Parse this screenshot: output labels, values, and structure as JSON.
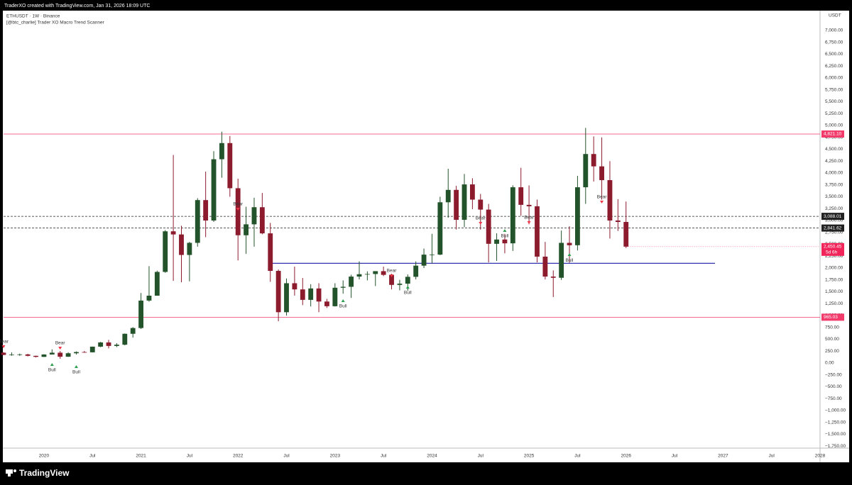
{
  "chart_data": {
    "type": "candlestick",
    "credit": "TraderXO created with TradingView.com, Jan 31, 2026 18:09 UTC",
    "title": "ETHUSDT · 1W · Binance",
    "subtitle": "[@btc_charlie] Trader XO Macro Trend Scanner",
    "currency": "USDT",
    "brand": "TradingView",
    "up_color": "#23532a",
    "down_color": "#8c1b2e",
    "grid": false,
    "x": [
      "2019-08",
      "2019-09",
      "2019-10",
      "2019-11",
      "2019-12",
      "2020-01",
      "2020-02",
      "2020-03",
      "2020-04",
      "2020-05",
      "2020-06",
      "2020-07",
      "2020-08",
      "2020-09",
      "2020-10",
      "2020-11",
      "2020-12",
      "2021-01",
      "2021-02",
      "2021-03",
      "2021-04",
      "2021-05",
      "2021-06",
      "2021-07",
      "2021-08",
      "2021-09",
      "2021-10",
      "2021-11",
      "2021-12",
      "2022-01",
      "2022-02",
      "2022-03",
      "2022-04",
      "2022-05",
      "2022-06",
      "2022-07",
      "2022-08",
      "2022-09",
      "2022-10",
      "2022-11",
      "2022-12",
      "2023-01",
      "2023-02",
      "2023-03",
      "2023-04",
      "2023-05",
      "2023-06",
      "2023-07",
      "2023-08",
      "2023-09",
      "2023-10",
      "2023-11",
      "2023-12",
      "2024-01",
      "2024-02",
      "2024-03",
      "2024-04",
      "2024-05",
      "2024-06",
      "2024-07",
      "2024-08",
      "2024-09",
      "2024-10",
      "2024-11",
      "2024-12",
      "2025-01",
      "2025-02",
      "2025-03",
      "2025-04",
      "2025-05",
      "2025-06",
      "2025-07",
      "2025-08",
      "2025-09",
      "2025-10",
      "2025-11",
      "2025-12",
      "2026-01"
    ],
    "open": [
      218,
      172,
      180,
      182,
      152,
      130,
      180,
      218,
      133,
      206,
      231,
      226,
      345,
      434,
      360,
      386,
      616,
      737,
      1315,
      1418,
      1918,
      2773,
      2707,
      2275,
      2530,
      3430,
      3000,
      4290,
      4630,
      3680,
      2690,
      2920,
      3280,
      2730,
      1940,
      1070,
      1680,
      1550,
      1330,
      1570,
      1295,
      1196,
      1585,
      1605,
      1820,
      1870,
      1874,
      1934,
      1856,
      1645,
      1671,
      1815,
      2050,
      2282,
      2283,
      3384,
      3645,
      3015,
      3760,
      3440,
      3230,
      2510,
      2600,
      2520,
      3700,
      3330,
      3300,
      2240,
      1820,
      1795,
      2530,
      2480,
      3700,
      4400,
      4140,
      3850,
      3000,
      2970
    ],
    "high": [
      230,
      225,
      198,
      195,
      155,
      185,
      288,
      253,
      227,
      245,
      255,
      345,
      445,
      488,
      420,
      622,
      755,
      1475,
      2040,
      1945,
      2800,
      4380,
      2890,
      2550,
      3470,
      4030,
      4460,
      4870,
      4780,
      3880,
      3290,
      3480,
      3580,
      2950,
      1970,
      1780,
      2030,
      1790,
      1660,
      1680,
      1350,
      1680,
      1740,
      1860,
      2140,
      1930,
      1930,
      2030,
      1880,
      1750,
      1865,
      2140,
      2410,
      2720,
      3500,
      4090,
      3730,
      3980,
      3890,
      3560,
      3350,
      2730,
      2720,
      3740,
      4110,
      3740,
      3440,
      2550,
      1950,
      2790,
      2880,
      3940,
      4950,
      4770,
      4750,
      4250,
      3450,
      3400
    ],
    "low": [
      165,
      153,
      152,
      140,
      117,
      127,
      180,
      90,
      130,
      178,
      216,
      225,
      335,
      308,
      335,
      373,
      535,
      715,
      1290,
      1430,
      1900,
      1730,
      1700,
      1720,
      2450,
      2650,
      2970,
      3900,
      3500,
      2160,
      2300,
      2450,
      2710,
      1710,
      880,
      1000,
      1420,
      1220,
      1190,
      1070,
      1160,
      1190,
      1460,
      1370,
      1760,
      1740,
      1620,
      1830,
      1550,
      1530,
      1520,
      1760,
      2000,
      2100,
      2270,
      3060,
      2810,
      2860,
      3240,
      2810,
      2120,
      2150,
      2310,
      2360,
      3100,
      2920,
      2120,
      1760,
      1390,
      1750,
      2110,
      2370,
      3350,
      3820,
      3440,
      2620,
      2780,
      2420
    ],
    "close": [
      172,
      180,
      182,
      152,
      130,
      180,
      218,
      133,
      206,
      231,
      226,
      345,
      434,
      360,
      386,
      616,
      737,
      1315,
      1418,
      1918,
      2773,
      2707,
      2275,
      2530,
      3430,
      3000,
      4290,
      4630,
      3680,
      2690,
      2920,
      3280,
      2730,
      1940,
      1070,
      1680,
      1550,
      1330,
      1570,
      1295,
      1196,
      1585,
      1605,
      1820,
      1870,
      1874,
      1934,
      1856,
      1645,
      1671,
      1815,
      2050,
      2282,
      2283,
      3384,
      3645,
      3015,
      3760,
      3440,
      3230,
      2510,
      2600,
      2520,
      3700,
      3330,
      3300,
      2240,
      1820,
      1795,
      2530,
      2480,
      3700,
      4400,
      4140,
      3850,
      3000,
      2970,
      2450.45
    ],
    "xlim": [
      "2019-08",
      "2028-01"
    ],
    "xticks": [
      {
        "value": "2020-01",
        "label": "2020"
      },
      {
        "value": "2020-07",
        "label": "Jul"
      },
      {
        "value": "2021-01",
        "label": "2021"
      },
      {
        "value": "2021-07",
        "label": "Jul"
      },
      {
        "value": "2022-01",
        "label": "2022"
      },
      {
        "value": "2022-07",
        "label": "Jul"
      },
      {
        "value": "2023-01",
        "label": "2023"
      },
      {
        "value": "2023-07",
        "label": "Jul"
      },
      {
        "value": "2024-01",
        "label": "2024"
      },
      {
        "value": "2024-07",
        "label": "Jul"
      },
      {
        "value": "2025-01",
        "label": "2025"
      },
      {
        "value": "2025-07",
        "label": "Jul"
      },
      {
        "value": "2026-01",
        "label": "2026"
      },
      {
        "value": "2026-07",
        "label": "Jul"
      },
      {
        "value": "2027-01",
        "label": "2027"
      },
      {
        "value": "2027-07",
        "label": "Jul"
      },
      {
        "value": "2028-01",
        "label": "2028"
      }
    ],
    "ylim": [
      -1791,
      7418
    ],
    "yticks": [
      {
        "value": 7000,
        "label": "7,000.00"
      },
      {
        "value": 6750,
        "label": "6,750.00"
      },
      {
        "value": 6500,
        "label": "6,500.00"
      },
      {
        "value": 6250,
        "label": "6,250.00"
      },
      {
        "value": 6000,
        "label": "6,000.00"
      },
      {
        "value": 5750,
        "label": "5,750.00"
      },
      {
        "value": 5500,
        "label": "5,500.00"
      },
      {
        "value": 5250,
        "label": "5,250.00"
      },
      {
        "value": 5000,
        "label": "5,000.00"
      },
      {
        "value": 4750,
        "label": "4,750.00"
      },
      {
        "value": 4500,
        "label": "4,500.00"
      },
      {
        "value": 4250,
        "label": "4,250.00"
      },
      {
        "value": 4000,
        "label": "4,000.00"
      },
      {
        "value": 3750,
        "label": "3,750.00"
      },
      {
        "value": 3500,
        "label": "3,500.00"
      },
      {
        "value": 3250,
        "label": "3,250.00"
      },
      {
        "value": 3000,
        "label": "3,000.00"
      },
      {
        "value": 2750,
        "label": "2,750.00"
      },
      {
        "value": 2500,
        "label": "2,500.00"
      },
      {
        "value": 2250,
        "label": "2,250.00"
      },
      {
        "value": 2000,
        "label": "2,000.00"
      },
      {
        "value": 1750,
        "label": "1,750.00"
      },
      {
        "value": 1500,
        "label": "1,500.00"
      },
      {
        "value": 1250,
        "label": "1,250.00"
      },
      {
        "value": 1000,
        "label": "1,000.00"
      },
      {
        "value": 750,
        "label": "750.00"
      },
      {
        "value": 500,
        "label": "500.00"
      },
      {
        "value": 250,
        "label": "250.00"
      },
      {
        "value": 0,
        "label": "0.00"
      },
      {
        "value": -250,
        "label": "−250.00"
      },
      {
        "value": -500,
        "label": "−500.00"
      },
      {
        "value": -750,
        "label": "−750.00"
      },
      {
        "value": -1000,
        "label": "−1,000.00"
      },
      {
        "value": -1250,
        "label": "−1,250.00"
      },
      {
        "value": -1500,
        "label": "−1,500.00"
      },
      {
        "value": -1750,
        "label": "−1,750.00"
      }
    ],
    "levels": [
      {
        "value": 4821.1,
        "label": "4,821.10",
        "color": "#f23a6b",
        "dashed": false
      },
      {
        "value": 3088.01,
        "label": "3,088.01",
        "color": "#222222",
        "dashed": true
      },
      {
        "value": 2841.62,
        "label": "2,841.62",
        "color": "#222222",
        "dashed": true
      },
      {
        "value": 965.03,
        "label": "965.03",
        "color": "#f23a6b",
        "dashed": false
      }
    ],
    "trend_line": {
      "value": 2100,
      "color": "#1a1aa8",
      "from": "2022-05",
      "to": "2026-12"
    },
    "last_price": {
      "label": "2,450.45",
      "countdown": "5d 6h",
      "color": "#f2255b"
    },
    "annotations": [
      {
        "text": "Bear",
        "x": "2019-08",
        "y": 373,
        "color": "#f23645",
        "down": true
      },
      {
        "text": "Bull",
        "x": "2020-02",
        "y": 0,
        "color": "#2e9e4f",
        "down": false
      },
      {
        "text": "Bear",
        "x": "2020-03",
        "y": 343,
        "color": "#f23645",
        "down": true
      },
      {
        "text": "Bull",
        "x": "2020-05",
        "y": -45,
        "color": "#2e9e4f",
        "down": false
      },
      {
        "text": "Bear",
        "x": "2022-01",
        "y": 3269,
        "color": "#f23645",
        "down": true
      },
      {
        "text": "Bull",
        "x": "2023-02",
        "y": 1343,
        "color": "#2e9e4f",
        "down": false
      },
      {
        "text": "Bear",
        "x": "2023-08",
        "y": 1866,
        "color": "#f23645",
        "down": true
      },
      {
        "text": "Bull",
        "x": "2023-10",
        "y": 1627,
        "color": "#2e9e4f",
        "down": false
      },
      {
        "text": "Bear",
        "x": "2024-07",
        "y": 2970,
        "color": "#f23645",
        "down": true
      },
      {
        "text": "Bull",
        "x": "2024-10",
        "y": 2821,
        "color": "#2e9e4f",
        "down": false
      },
      {
        "text": "Bear",
        "x": "2025-01",
        "y": 2985,
        "color": "#f23645",
        "down": true
      },
      {
        "text": "Bull",
        "x": "2025-06",
        "y": 2313,
        "color": "#2e9e4f",
        "down": false
      },
      {
        "text": "Bear",
        "x": "2025-10",
        "y": 3418,
        "color": "#f23645",
        "down": true
      }
    ]
  }
}
